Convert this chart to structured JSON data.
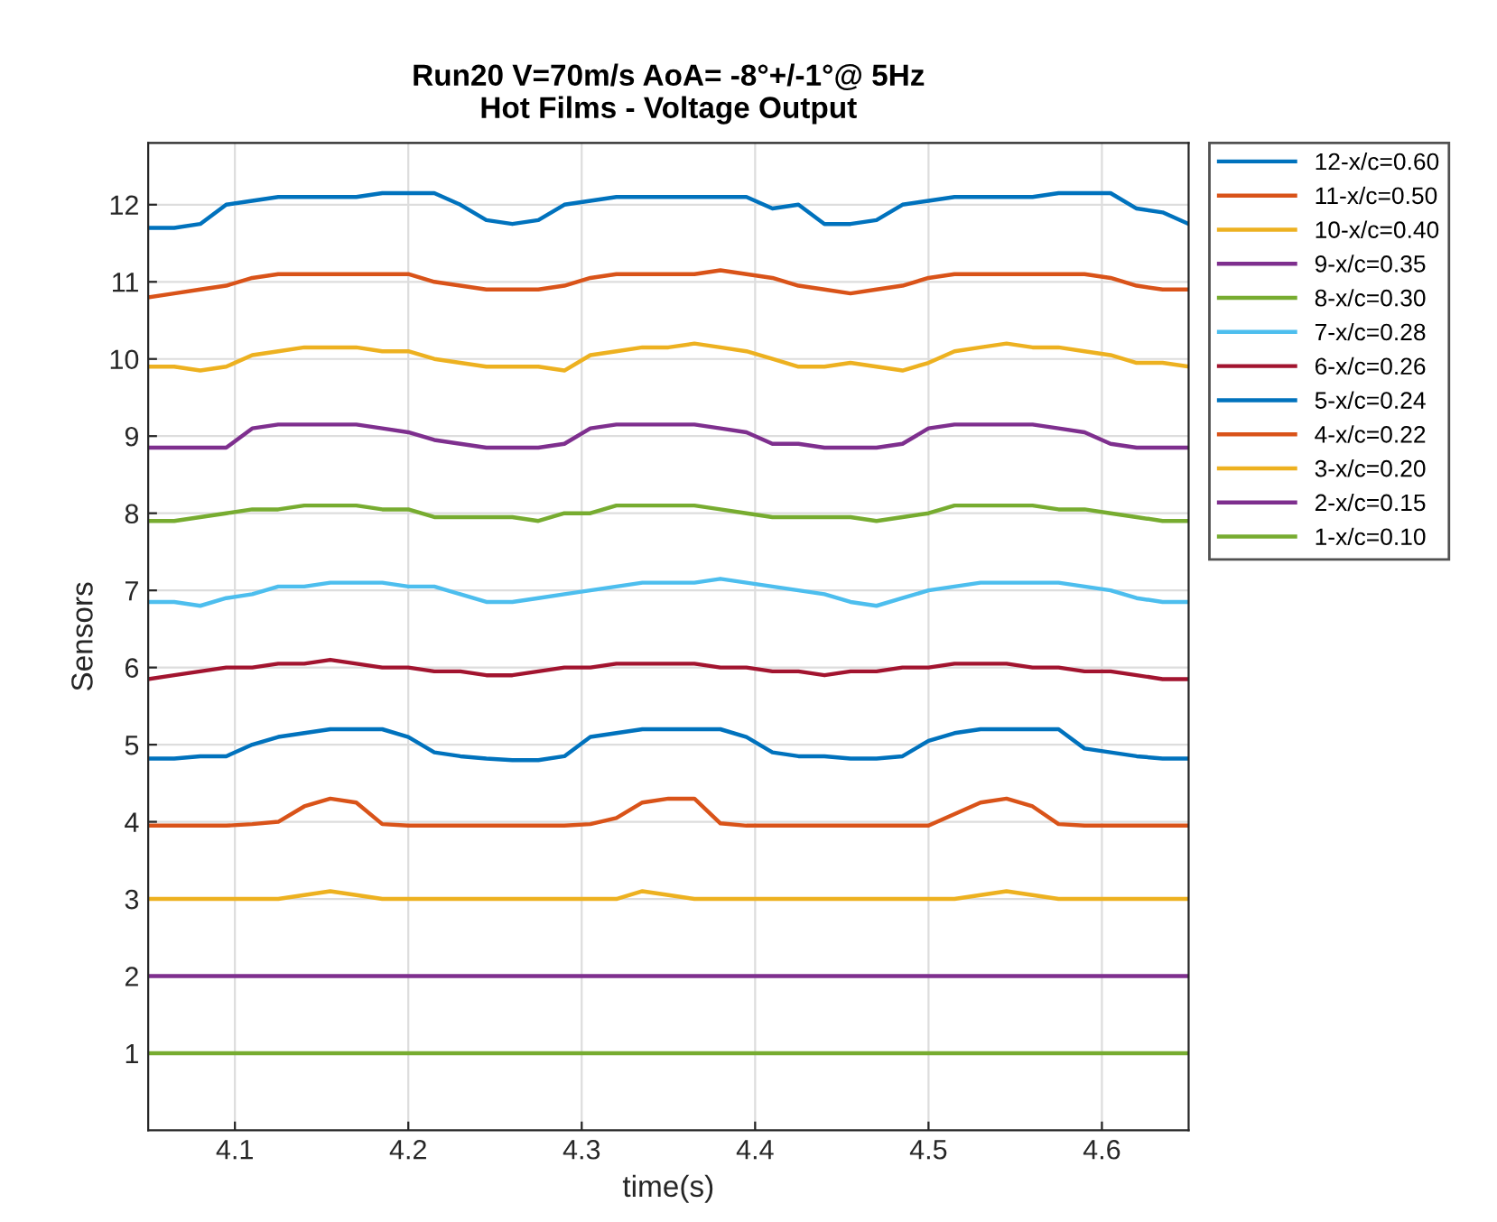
{
  "chart_data": {
    "type": "line",
    "title": "Run20 V=70m/s AoA= -8°+/-1°@ 5Hz",
    "subtitle": "Hot Films - Voltage Output",
    "xlabel": "time(s)",
    "ylabel": "Sensors",
    "x": [
      4.05,
      4.065,
      4.08,
      4.095,
      4.11,
      4.125,
      4.14,
      4.155,
      4.17,
      4.185,
      4.2,
      4.215,
      4.23,
      4.245,
      4.26,
      4.275,
      4.29,
      4.305,
      4.32,
      4.335,
      4.35,
      4.365,
      4.38,
      4.395,
      4.41,
      4.425,
      4.44,
      4.455,
      4.47,
      4.485,
      4.5,
      4.515,
      4.53,
      4.545,
      4.56,
      4.575,
      4.59,
      4.605,
      4.62,
      4.635,
      4.65
    ],
    "xlim": [
      4.05,
      4.65
    ],
    "xticks": [
      4.1,
      4.2,
      4.3,
      4.4,
      4.5,
      4.6
    ],
    "ylim": [
      0,
      12.8
    ],
    "yticks": [
      1,
      2,
      3,
      4,
      5,
      6,
      7,
      8,
      9,
      10,
      11,
      12
    ],
    "grid": true,
    "legend": "top right",
    "line_style": "solid",
    "series": [
      {
        "name": "12-x/c=0.60",
        "color": "#0072bd",
        "values": [
          11.7,
          11.7,
          11.75,
          12.0,
          12.05,
          12.1,
          12.1,
          12.1,
          12.1,
          12.15,
          12.15,
          12.15,
          12.0,
          11.8,
          11.75,
          11.8,
          12.0,
          12.05,
          12.1,
          12.1,
          12.1,
          12.1,
          12.1,
          12.1,
          11.95,
          12.0,
          11.75,
          11.75,
          11.8,
          12.0,
          12.05,
          12.1,
          12.1,
          12.1,
          12.1,
          12.15,
          12.15,
          12.15,
          11.95,
          11.9,
          11.75
        ]
      },
      {
        "name": "11-x/c=0.50",
        "color": "#d95319",
        "values": [
          10.8,
          10.85,
          10.9,
          10.95,
          11.05,
          11.1,
          11.1,
          11.1,
          11.1,
          11.1,
          11.1,
          11.0,
          10.95,
          10.9,
          10.9,
          10.9,
          10.95,
          11.05,
          11.1,
          11.1,
          11.1,
          11.1,
          11.15,
          11.1,
          11.05,
          10.95,
          10.9,
          10.85,
          10.9,
          10.95,
          11.05,
          11.1,
          11.1,
          11.1,
          11.1,
          11.1,
          11.1,
          11.05,
          10.95,
          10.9,
          10.9
        ]
      },
      {
        "name": "10-x/c=0.40",
        "color": "#edb120",
        "values": [
          9.9,
          9.9,
          9.85,
          9.9,
          10.05,
          10.1,
          10.15,
          10.15,
          10.15,
          10.1,
          10.1,
          10.0,
          9.95,
          9.9,
          9.9,
          9.9,
          9.85,
          10.05,
          10.1,
          10.15,
          10.15,
          10.2,
          10.15,
          10.1,
          10.0,
          9.9,
          9.9,
          9.95,
          9.9,
          9.85,
          9.95,
          10.1,
          10.15,
          10.2,
          10.15,
          10.15,
          10.1,
          10.05,
          9.95,
          9.95,
          9.9
        ]
      },
      {
        "name": "9-x/c=0.35",
        "color": "#7e2f8e",
        "values": [
          8.85,
          8.85,
          8.85,
          8.85,
          9.1,
          9.15,
          9.15,
          9.15,
          9.15,
          9.1,
          9.05,
          8.95,
          8.9,
          8.85,
          8.85,
          8.85,
          8.9,
          9.1,
          9.15,
          9.15,
          9.15,
          9.15,
          9.1,
          9.05,
          8.9,
          8.9,
          8.85,
          8.85,
          8.85,
          8.9,
          9.1,
          9.15,
          9.15,
          9.15,
          9.15,
          9.1,
          9.05,
          8.9,
          8.85,
          8.85,
          8.85
        ]
      },
      {
        "name": "8-x/c=0.30",
        "color": "#77ac30",
        "values": [
          7.9,
          7.9,
          7.95,
          8.0,
          8.05,
          8.05,
          8.1,
          8.1,
          8.1,
          8.05,
          8.05,
          7.95,
          7.95,
          7.95,
          7.95,
          7.9,
          8.0,
          8.0,
          8.1,
          8.1,
          8.1,
          8.1,
          8.05,
          8.0,
          7.95,
          7.95,
          7.95,
          7.95,
          7.9,
          7.95,
          8.0,
          8.1,
          8.1,
          8.1,
          8.1,
          8.05,
          8.05,
          8.0,
          7.95,
          7.9,
          7.9
        ]
      },
      {
        "name": "7-x/c=0.28",
        "color": "#4dbeee",
        "values": [
          6.85,
          6.85,
          6.8,
          6.9,
          6.95,
          7.05,
          7.05,
          7.1,
          7.1,
          7.1,
          7.05,
          7.05,
          6.95,
          6.85,
          6.85,
          6.9,
          6.95,
          7.0,
          7.05,
          7.1,
          7.1,
          7.1,
          7.15,
          7.1,
          7.05,
          7.0,
          6.95,
          6.85,
          6.8,
          6.9,
          7.0,
          7.05,
          7.1,
          7.1,
          7.1,
          7.1,
          7.05,
          7.0,
          6.9,
          6.85,
          6.85
        ]
      },
      {
        "name": "6-x/c=0.26",
        "color": "#a2142f",
        "values": [
          5.85,
          5.9,
          5.95,
          6.0,
          6.0,
          6.05,
          6.05,
          6.1,
          6.05,
          6.0,
          6.0,
          5.95,
          5.95,
          5.9,
          5.9,
          5.95,
          6.0,
          6.0,
          6.05,
          6.05,
          6.05,
          6.05,
          6.0,
          6.0,
          5.95,
          5.95,
          5.9,
          5.95,
          5.95,
          6.0,
          6.0,
          6.05,
          6.05,
          6.05,
          6.0,
          6.0,
          5.95,
          5.95,
          5.9,
          5.85,
          5.85
        ]
      },
      {
        "name": "5-x/c=0.24",
        "color": "#0072bd",
        "values": [
          4.82,
          4.82,
          4.85,
          4.85,
          5.0,
          5.1,
          5.15,
          5.2,
          5.2,
          5.2,
          5.1,
          4.9,
          4.85,
          4.82,
          4.8,
          4.8,
          4.85,
          5.1,
          5.15,
          5.2,
          5.2,
          5.2,
          5.2,
          5.1,
          4.9,
          4.85,
          4.85,
          4.82,
          4.82,
          4.85,
          5.05,
          5.15,
          5.2,
          5.2,
          5.2,
          5.2,
          4.95,
          4.9,
          4.85,
          4.82,
          4.82
        ]
      },
      {
        "name": "4-x/c=0.22",
        "color": "#d95319",
        "values": [
          3.95,
          3.95,
          3.95,
          3.95,
          3.97,
          4.0,
          4.2,
          4.3,
          4.25,
          3.97,
          3.95,
          3.95,
          3.95,
          3.95,
          3.95,
          3.95,
          3.95,
          3.97,
          4.05,
          4.25,
          4.3,
          4.3,
          3.98,
          3.95,
          3.95,
          3.95,
          3.95,
          3.95,
          3.95,
          3.95,
          3.95,
          4.1,
          4.25,
          4.3,
          4.2,
          3.97,
          3.95,
          3.95,
          3.95,
          3.95,
          3.95
        ]
      },
      {
        "name": "3-x/c=0.20",
        "color": "#edb120",
        "values": [
          3.0,
          3.0,
          3.0,
          3.0,
          3.0,
          3.0,
          3.05,
          3.1,
          3.05,
          3.0,
          3.0,
          3.0,
          3.0,
          3.0,
          3.0,
          3.0,
          3.0,
          3.0,
          3.0,
          3.1,
          3.05,
          3.0,
          3.0,
          3.0,
          3.0,
          3.0,
          3.0,
          3.0,
          3.0,
          3.0,
          3.0,
          3.0,
          3.05,
          3.1,
          3.05,
          3.0,
          3.0,
          3.0,
          3.0,
          3.0,
          3.0
        ]
      },
      {
        "name": "2-x/c=0.15",
        "color": "#7e2f8e",
        "values": [
          2.0,
          2.0,
          2.0,
          2.0,
          2.0,
          2.0,
          2.0,
          2.0,
          2.0,
          2.0,
          2.0,
          2.0,
          2.0,
          2.0,
          2.0,
          2.0,
          2.0,
          2.0,
          2.0,
          2.0,
          2.0,
          2.0,
          2.0,
          2.0,
          2.0,
          2.0,
          2.0,
          2.0,
          2.0,
          2.0,
          2.0,
          2.0,
          2.0,
          2.0,
          2.0,
          2.0,
          2.0,
          2.0,
          2.0,
          2.0,
          2.0
        ]
      },
      {
        "name": "1-x/c=0.10",
        "color": "#77ac30",
        "values": [
          1.0,
          1.0,
          1.0,
          1.0,
          1.0,
          1.0,
          1.0,
          1.0,
          1.0,
          1.0,
          1.0,
          1.0,
          1.0,
          1.0,
          1.0,
          1.0,
          1.0,
          1.0,
          1.0,
          1.0,
          1.0,
          1.0,
          1.0,
          1.0,
          1.0,
          1.0,
          1.0,
          1.0,
          1.0,
          1.0,
          1.0,
          1.0,
          1.0,
          1.0,
          1.0,
          1.0,
          1.0,
          1.0,
          1.0,
          1.0,
          1.0
        ]
      }
    ]
  }
}
